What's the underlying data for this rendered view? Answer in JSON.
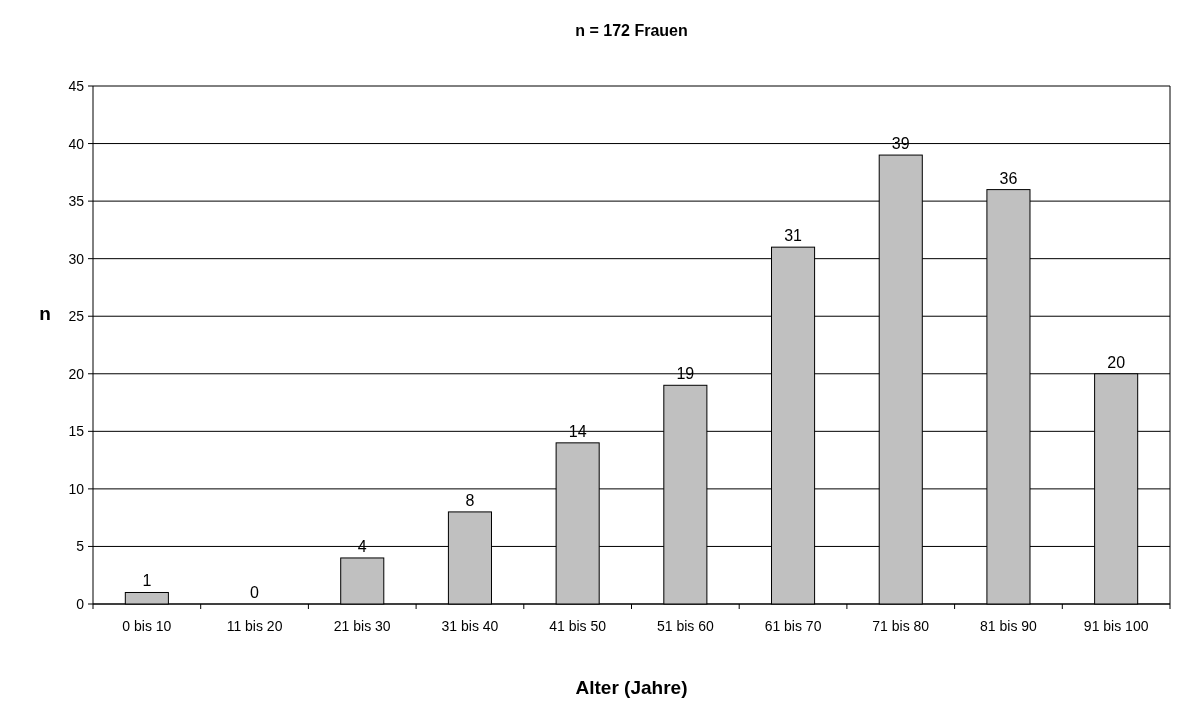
{
  "chart_data": {
    "type": "bar",
    "title": "n = 172 Frauen",
    "xlabel": "Alter (Jahre)",
    "ylabel": "n",
    "categories": [
      "0 bis 10",
      "11 bis 20",
      "21 bis 30",
      "31 bis 40",
      "41 bis 50",
      "51 bis 60",
      "61 bis 70",
      "71 bis 80",
      "81 bis 90",
      "91 bis 100"
    ],
    "values": [
      1,
      0,
      4,
      8,
      14,
      19,
      31,
      39,
      36,
      20
    ],
    "color": "#c0c0c0",
    "ylim": [
      0,
      45
    ],
    "yticks": [
      0,
      5,
      10,
      15,
      20,
      25,
      30,
      35,
      40,
      45
    ],
    "grid": "y",
    "data_labels": true
  }
}
